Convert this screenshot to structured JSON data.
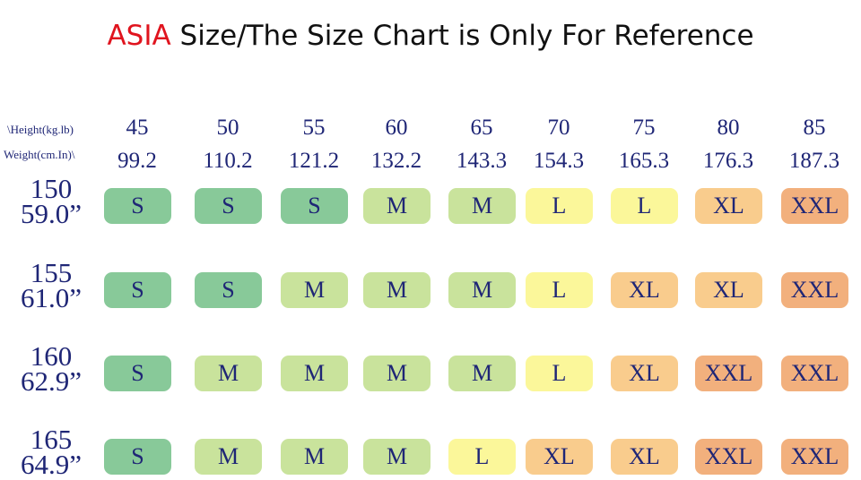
{
  "title": {
    "highlight": "ASIA",
    "rest": " Size/The Size Chart is Only For Reference"
  },
  "header": {
    "corner_top": "\\Height(kg.lb)",
    "corner_bottom": "Weight(cm.In)\\",
    "kg": [
      "45",
      "50",
      "55",
      "60",
      "65",
      "70",
      "75",
      "80",
      "85"
    ],
    "lb": [
      "99.2",
      "110.2",
      "121.2",
      "132.2",
      "143.3",
      "154.3",
      "165.3",
      "176.3",
      "187.3"
    ]
  },
  "rows": [
    {
      "cm": "150",
      "in": "59.0”",
      "sizes": [
        "S",
        "S",
        "S",
        "M",
        "M",
        "L",
        "L",
        "XL",
        "XXL"
      ]
    },
    {
      "cm": "155",
      "in": "61.0”",
      "sizes": [
        "S",
        "S",
        "M",
        "M",
        "M",
        "L",
        "XL",
        "XL",
        "XXL"
      ]
    },
    {
      "cm": "160",
      "in": "62.9”",
      "sizes": [
        "S",
        "M",
        "M",
        "M",
        "M",
        "L",
        "XL",
        "XXL",
        "XXL"
      ]
    },
    {
      "cm": "165",
      "in": "64.9”",
      "sizes": [
        "S",
        "M",
        "M",
        "M",
        "L",
        "XL",
        "XL",
        "XXL",
        "XXL"
      ]
    }
  ],
  "colors": {
    "S": "#88c999",
    "M": "#c9e39c",
    "L": "#fbf79a",
    "XL": "#f9cc8d",
    "XXL": "#f2b07d",
    "title_accent": "#e0141e",
    "text": "#1f2676"
  }
}
